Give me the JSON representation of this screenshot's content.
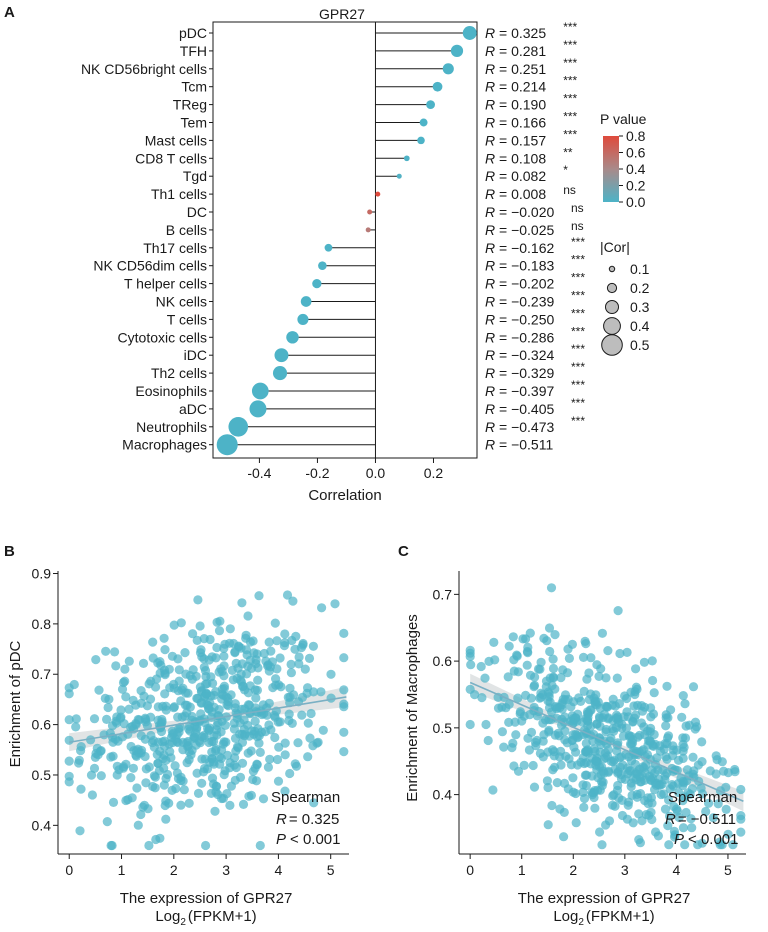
{
  "colors": {
    "dot": "#4db3c7",
    "dot_mid": "#b08a86",
    "dot_high": "#df4a3c",
    "fit_line": "#7ab0c4",
    "band": "#d4d8da",
    "text": "#1a1a1a"
  },
  "chart_data": [
    {
      "panel": "A",
      "type": "lollipop",
      "title": "GPR27",
      "xlabel": "Correlation",
      "xlim": [
        -0.56,
        0.35
      ],
      "xticks": [
        "-0.4",
        "-0.2",
        "0.0",
        "0.2"
      ],
      "xtick_values": [
        -0.4,
        -0.2,
        0.0,
        0.2
      ],
      "cell_types": [
        "pDC",
        "TFH",
        "NK CD56bright cells",
        "Tcm",
        "TReg",
        "Tem",
        "Mast cells",
        "CD8 T cells",
        "Tgd",
        "Th1 cells",
        "DC",
        "B cells",
        "Th17 cells",
        "NK CD56dim cells",
        "T helper cells",
        "NK cells",
        "T cells",
        "Cytotoxic cells",
        "iDC",
        "Th2 cells",
        "Eosinophils",
        "aDC",
        "Neutrophils",
        "Macrophages"
      ],
      "r_values": [
        0.325,
        0.281,
        0.251,
        0.214,
        0.19,
        0.166,
        0.157,
        0.108,
        0.082,
        0.008,
        -0.02,
        -0.025,
        -0.162,
        -0.183,
        -0.202,
        -0.239,
        -0.25,
        -0.286,
        -0.324,
        -0.329,
        -0.397,
        -0.405,
        -0.473,
        -0.511
      ],
      "r_labels": [
        "0.325",
        "0.281",
        "0.251",
        "0.214",
        "0.190",
        "0.166",
        "0.157",
        "0.108",
        "0.082",
        "0.008",
        "−0.020",
        "−0.025",
        "−0.162",
        "−0.183",
        "−0.202",
        "−0.239",
        "−0.250",
        "−0.286",
        "−0.324",
        "−0.329",
        "−0.397",
        "−0.405",
        "−0.473",
        "−0.511"
      ],
      "significance": [
        "***",
        "***",
        "***",
        "***",
        "***",
        "***",
        "***",
        "**",
        "*",
        "ns",
        "ns",
        "ns",
        "***",
        "***",
        "***",
        "***",
        "***",
        "***",
        "***",
        "***",
        "***",
        "***",
        "***",
        ""
      ],
      "p_values": [
        0.0,
        0.0,
        0.0,
        0.0,
        0.0,
        0.0,
        0.0,
        0.005,
        0.02,
        0.8,
        0.6,
        0.5,
        0.0,
        0.0,
        0.0,
        0.0,
        0.0,
        0.0,
        0.0,
        0.0,
        0.0,
        0.0,
        0.0,
        0.0
      ],
      "r_prefix": "R",
      "legend_pvalue": {
        "title": "P value",
        "ticks": [
          "0.8",
          "0.6",
          "0.4",
          "0.2",
          "0.0"
        ],
        "tick_values": [
          0.8,
          0.6,
          0.4,
          0.2,
          0.0
        ]
      },
      "legend_cor": {
        "title": "|Cor|",
        "labels": [
          "0.1",
          "0.2",
          "0.3",
          "0.4",
          "0.5"
        ],
        "values": [
          0.1,
          0.2,
          0.3,
          0.4,
          0.5
        ]
      }
    },
    {
      "panel": "B",
      "type": "scatter",
      "xlabel": "The expression  of GPR27",
      "xlabel2_base": "Log",
      "xlabel2_sub": "2",
      "xlabel2_rest": "(FPKM+1)",
      "ylabel": "Enrichment of pDC",
      "xlim": [
        -0.1,
        5.35
      ],
      "ylim": [
        0.355,
        0.905
      ],
      "xticks": [
        "0",
        "1",
        "2",
        "3",
        "4",
        "5"
      ],
      "xtick_values": [
        0,
        1,
        2,
        3,
        4,
        5
      ],
      "yticks": [
        "0.4",
        "0.5",
        "0.6",
        "0.7",
        "0.8",
        "0.9"
      ],
      "ytick_values": [
        0.4,
        0.5,
        0.6,
        0.7,
        0.8,
        0.9
      ],
      "fit": {
        "x": [
          0,
          5.3
        ],
        "y": [
          0.565,
          0.655
        ]
      },
      "n_points": 600,
      "annotation": {
        "method": "Spearman",
        "r_label": "R",
        "r_value": "= 0.325",
        "p_label": "P",
        "p_value": "< 0.001"
      }
    },
    {
      "panel": "C",
      "type": "scatter",
      "xlabel": "The expression  of GPR27",
      "xlabel2_base": "Log",
      "xlabel2_sub": "2",
      "xlabel2_rest": "(FPKM+1)",
      "ylabel": "Enrichment of Macrophages",
      "xlim": [
        -0.1,
        5.35
      ],
      "ylim": [
        0.32,
        0.735
      ],
      "xticks": [
        "0",
        "1",
        "2",
        "3",
        "4",
        "5"
      ],
      "xtick_values": [
        0,
        1,
        2,
        3,
        4,
        5
      ],
      "yticks": [
        "0.4",
        "0.5",
        "0.6",
        "0.7"
      ],
      "ytick_values": [
        0.4,
        0.5,
        0.6,
        0.7
      ],
      "fit": {
        "x": [
          0,
          5.3
        ],
        "y": [
          0.568,
          0.39
        ]
      },
      "n_points": 600,
      "annotation": {
        "method": "Spearman",
        "r_label": "R",
        "r_value": "= −0.511",
        "p_label": "P",
        "p_value": "< 0.001"
      }
    }
  ]
}
